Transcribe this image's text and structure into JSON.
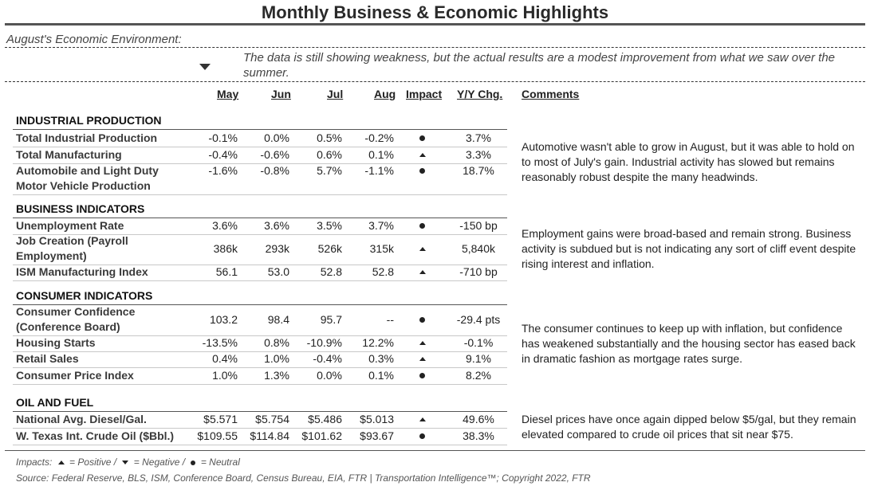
{
  "title": "Monthly Business & Economic Highlights",
  "environment": {
    "label": "August's Economic Environment:",
    "text": "The data is still showing weakness, but the actual results are a modest improvement from what we saw over the summer."
  },
  "headers": {
    "may": "May",
    "jun": "Jun",
    "jul": "Jul",
    "aug": "Aug",
    "impact": "Impact",
    "yy": "Y/Y Chg.",
    "comments": "Comments"
  },
  "sections": [
    {
      "title": "INDUSTRIAL PRODUCTION",
      "comment": "Automotive wasn't able to grow in August, but it was able to hold on to most of July's gain. Industrial activity has slowed but remains reasonably robust despite the many headwinds.",
      "rows": [
        {
          "name": "Total Industrial Production",
          "may": "-0.1%",
          "jun": "0.0%",
          "jul": "0.5%",
          "aug": "-0.2%",
          "impact": "neutral",
          "yy": "3.7%"
        },
        {
          "name": "Total Manufacturing",
          "may": "-0.4%",
          "jun": "-0.6%",
          "jul": "0.6%",
          "aug": "0.1%",
          "impact": "positive",
          "yy": "3.3%"
        },
        {
          "name": "Automobile and Light Duty",
          "name2": "Motor Vehicle Production",
          "may": "-1.6%",
          "jun": "-0.8%",
          "jul": "5.7%",
          "aug": "-1.1%",
          "impact": "neutral",
          "yy": "18.7%"
        }
      ]
    },
    {
      "title": "BUSINESS INDICATORS",
      "comment": "Employment gains were broad-based and remain strong. Business activity is subdued but is not indicating any sort of cliff event despite rising interest and inflation.",
      "rows": [
        {
          "name": "Unemployment Rate",
          "may": "3.6%",
          "jun": "3.6%",
          "jul": "3.5%",
          "aug": "3.7%",
          "impact": "neutral",
          "yy": "-150 bp"
        },
        {
          "name": "Job Creation (Payroll",
          "name2": "Employment)",
          "may": "386k",
          "jun": "293k",
          "jul": "526k",
          "aug": "315k",
          "impact": "positive",
          "yy": "5,840k"
        },
        {
          "name": "ISM Manufacturing Index",
          "may": "56.1",
          "jun": "53.0",
          "jul": "52.8",
          "aug": "52.8",
          "impact": "positive",
          "yy": "-710 bp"
        }
      ]
    },
    {
      "title": "CONSUMER INDICATORS",
      "comment": "The consumer continues to keep up with inflation, but confidence has weakened substantially and the housing sector has eased back in dramatic fashion as mortgage rates surge.",
      "rows": [
        {
          "name": "Consumer Confidence",
          "name2": "(Conference Board)",
          "may": "103.2",
          "jun": "98.4",
          "jul": "95.7",
          "aug": "--",
          "impact": "neutral",
          "yy": "-29.4 pts"
        },
        {
          "name": "Housing Starts",
          "may": "-13.5%",
          "jun": "0.8%",
          "jul": "-10.9%",
          "aug": "12.2%",
          "impact": "positive",
          "yy": "-0.1%"
        },
        {
          "name": "Retail Sales",
          "may": "0.4%",
          "jun": "1.0%",
          "jul": "-0.4%",
          "aug": "0.3%",
          "impact": "positive",
          "yy": "9.1%"
        },
        {
          "name": "Consumer Price Index",
          "may": "1.0%",
          "jun": "1.3%",
          "jul": "0.0%",
          "aug": "0.1%",
          "impact": "neutral",
          "yy": "8.2%"
        }
      ]
    },
    {
      "title": "OIL AND FUEL",
      "comment": "Diesel prices have once again dipped below $5/gal, but they remain elevated compared to crude oil prices that sit near $75.",
      "rows": [
        {
          "name": "National Avg. Diesel/Gal.",
          "may": "$5.571",
          "jun": "$5.754",
          "jul": "$5.486",
          "aug": "$5.013",
          "impact": "positive",
          "yy": "49.6%"
        },
        {
          "name": "W. Texas Int. Crude Oil ($Bbl.)",
          "may": "$109.55",
          "jun": "$114.84",
          "jul": "$101.62",
          "aug": "$93.67",
          "impact": "neutral",
          "yy": "38.3%"
        }
      ]
    }
  ],
  "legend": {
    "prefix": "Impacts:",
    "positive": "= Positive /",
    "negative": "= Negative /",
    "neutral": "= Neutral"
  },
  "source": "Source: Federal Reserve, BLS, ISM, Conference Board, Census Bureau, EIA, FTR | Transportation Intelligence™; Copyright 2022, FTR"
}
